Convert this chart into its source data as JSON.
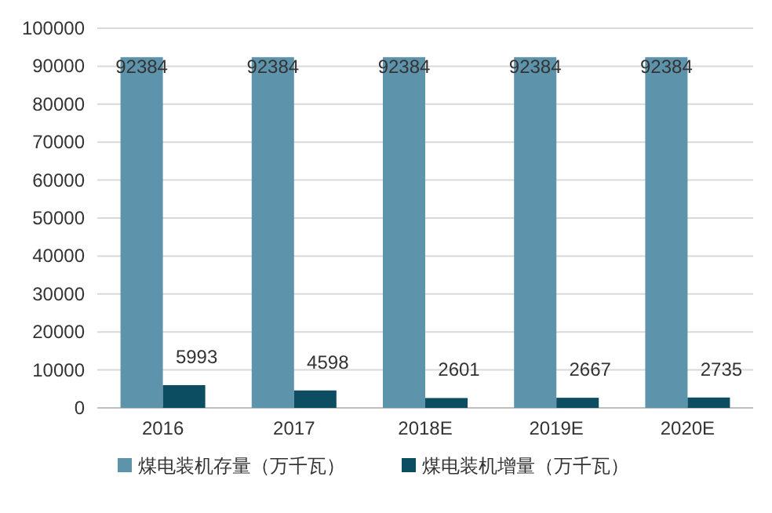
{
  "chart_data": {
    "type": "bar",
    "categories": [
      "2016",
      "2017",
      "2018E",
      "2019E",
      "2020E"
    ],
    "series": [
      {
        "name": "煤电装机存量（万千瓦）",
        "color": "#5e94ab",
        "values": [
          92384,
          92384,
          92384,
          92384,
          92384
        ]
      },
      {
        "name": "煤电装机增量（万千瓦）",
        "color": "#0d4d61",
        "values": [
          5993,
          4598,
          2601,
          2667,
          2735
        ]
      }
    ],
    "ylim": [
      0,
      100000
    ],
    "yticks": [
      0,
      10000,
      20000,
      30000,
      40000,
      50000,
      60000,
      70000,
      80000,
      90000,
      100000
    ],
    "grid": "y",
    "legend": "bottom",
    "data_labels": true
  }
}
